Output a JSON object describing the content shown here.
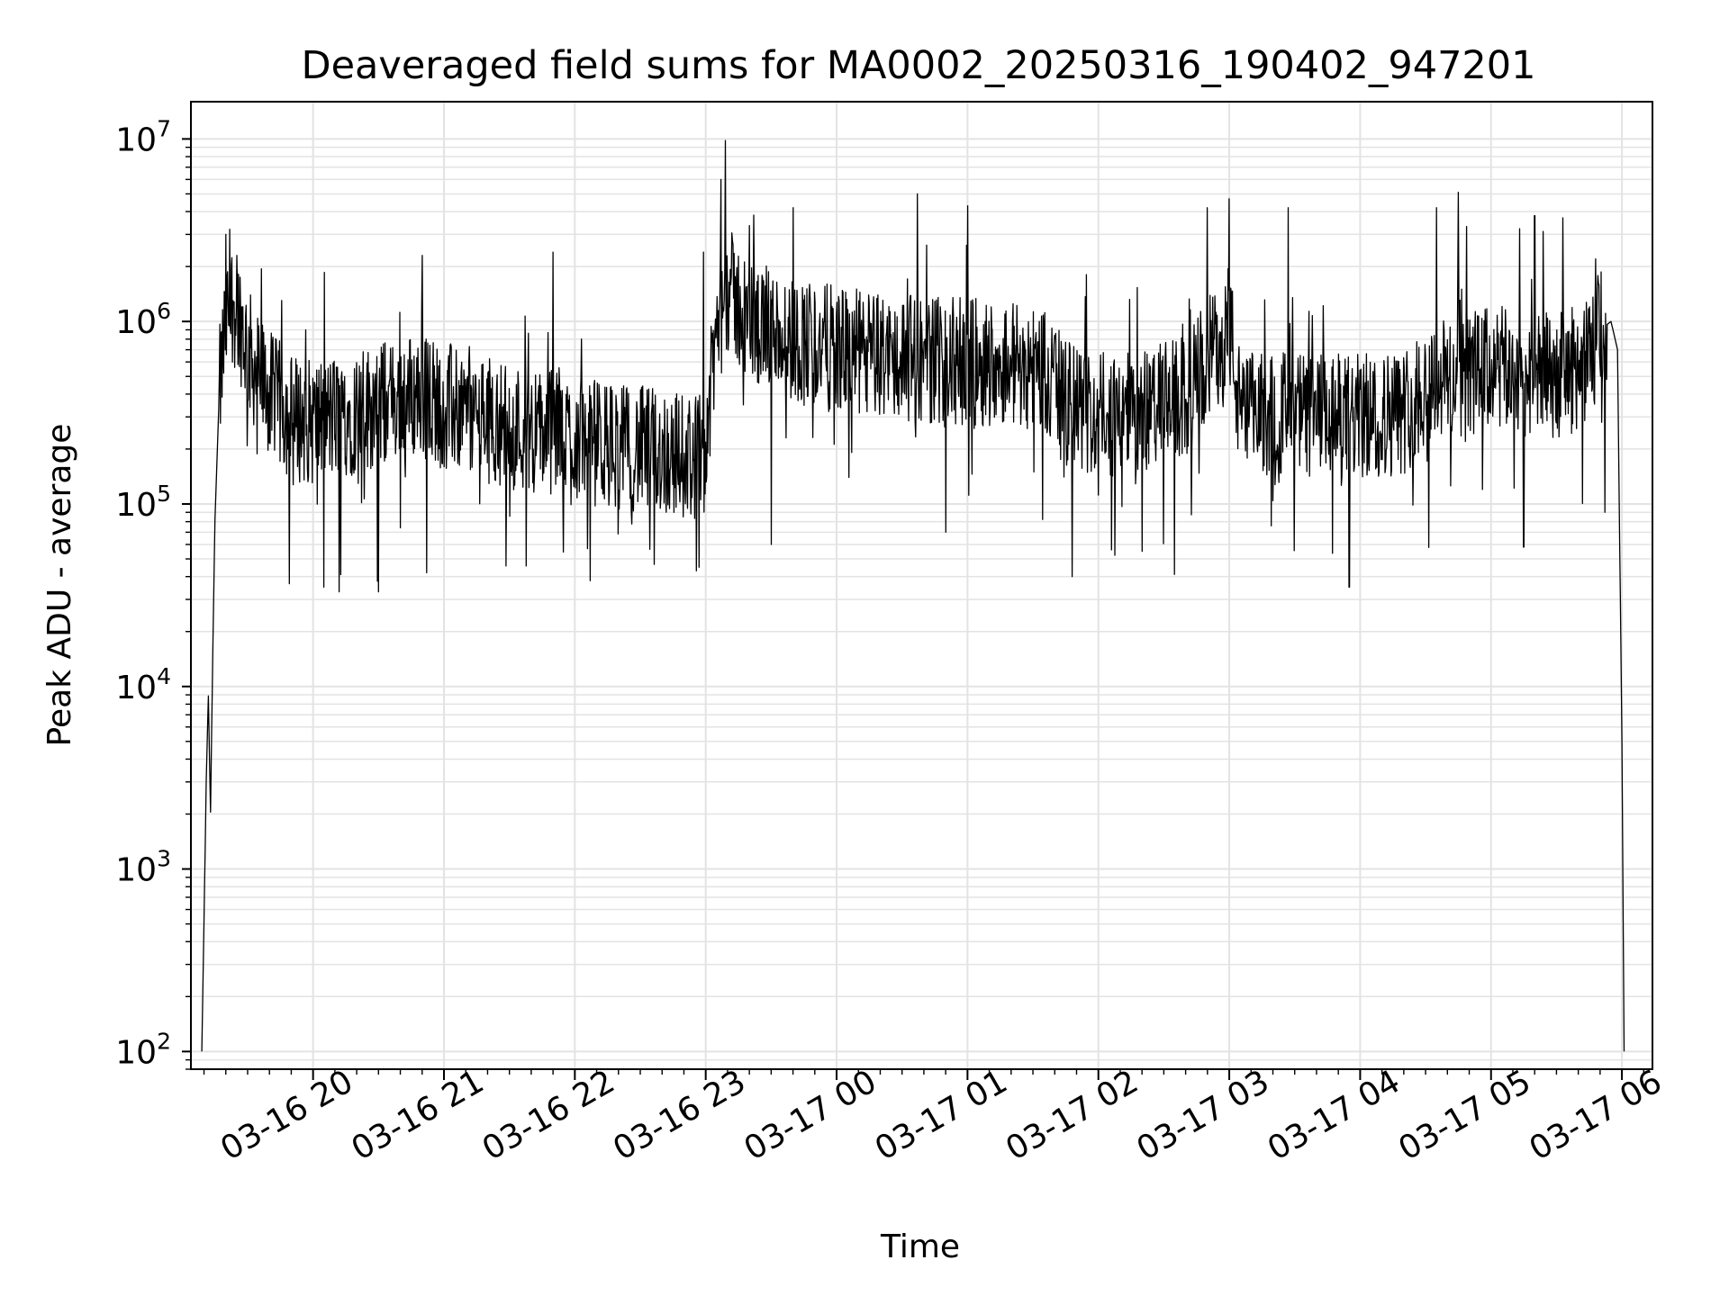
{
  "chart_data": {
    "type": "line",
    "title": "Deaveraged field sums for MA0002_20250316_190402_947201",
    "xlabel": "Time",
    "ylabel": "Peak ADU - average",
    "yscale": "log",
    "ylim": [
      80,
      16000000
    ],
    "xlim": [
      "2025-03-16 19:04",
      "2025-03-17 06:14"
    ],
    "grid": true,
    "x_ticks": [
      {
        "value": "2025-03-16 20:00",
        "label": "03-16 20"
      },
      {
        "value": "2025-03-16 21:00",
        "label": "03-16 21"
      },
      {
        "value": "2025-03-16 22:00",
        "label": "03-16 22"
      },
      {
        "value": "2025-03-16 23:00",
        "label": "03-16 23"
      },
      {
        "value": "2025-03-17 00:00",
        "label": "03-17 00"
      },
      {
        "value": "2025-03-17 01:00",
        "label": "03-17 01"
      },
      {
        "value": "2025-03-17 02:00",
        "label": "03-17 02"
      },
      {
        "value": "2025-03-17 03:00",
        "label": "03-17 03"
      },
      {
        "value": "2025-03-17 04:00",
        "label": "03-17 04"
      },
      {
        "value": "2025-03-17 05:00",
        "label": "03-17 05"
      },
      {
        "value": "2025-03-17 06:00",
        "label": "03-17 06"
      }
    ],
    "y_ticks": [
      {
        "value": 100,
        "base": "10",
        "exp": "2"
      },
      {
        "value": 1000,
        "base": "10",
        "exp": "3"
      },
      {
        "value": 10000,
        "base": "10",
        "exp": "4"
      },
      {
        "value": 100000,
        "base": "10",
        "exp": "5"
      },
      {
        "value": 1000000,
        "base": "10",
        "exp": "6"
      },
      {
        "value": 10000000,
        "base": "10",
        "exp": "7"
      }
    ],
    "series": [
      {
        "color": "#000000",
        "x": [
          "2025-03-16 19:09",
          "2025-03-16 19:10",
          "2025-03-16 19:11",
          "2025-03-16 19:12",
          "2025-03-16 19:13",
          "2025-03-16 19:14",
          "2025-03-16 19:15",
          "2025-03-16 19:17",
          "2025-03-16 19:20",
          "2025-03-16 19:23",
          "2025-03-16 19:26",
          "2025-03-16 19:30",
          "2025-03-16 19:35",
          "2025-03-16 19:40",
          "2025-03-16 19:45",
          "2025-03-16 19:50",
          "2025-03-16 20:00",
          "2025-03-16 20:10",
          "2025-03-16 20:20",
          "2025-03-16 20:30",
          "2025-03-16 20:40",
          "2025-03-16 20:50",
          "2025-03-16 21:00",
          "2025-03-16 21:15",
          "2025-03-16 21:30",
          "2025-03-16 21:45",
          "2025-03-16 22:00",
          "2025-03-16 22:15",
          "2025-03-16 22:30",
          "2025-03-16 22:45",
          "2025-03-16 22:55",
          "2025-03-16 23:00",
          "2025-03-16 23:05",
          "2025-03-16 23:10",
          "2025-03-16 23:20",
          "2025-03-16 23:40",
          "2025-03-17 00:00",
          "2025-03-17 00:20",
          "2025-03-17 00:40",
          "2025-03-17 01:00",
          "2025-03-17 01:20",
          "2025-03-17 01:35",
          "2025-03-17 01:45",
          "2025-03-17 02:00",
          "2025-03-17 02:20",
          "2025-03-17 02:40",
          "2025-03-17 02:50",
          "2025-03-17 03:00",
          "2025-03-17 03:05",
          "2025-03-17 03:20",
          "2025-03-17 03:40",
          "2025-03-17 04:00",
          "2025-03-17 04:20",
          "2025-03-17 04:30",
          "2025-03-17 04:45",
          "2025-03-17 05:00",
          "2025-03-17 05:15",
          "2025-03-17 05:30",
          "2025-03-17 05:45",
          "2025-03-17 05:50",
          "2025-03-17 05:55",
          "2025-03-17 05:58",
          "2025-03-17 06:00",
          "2025-03-17 06:01"
        ],
        "y": [
          100,
          500,
          3000,
          9000,
          2000,
          15000,
          80000,
          400000,
          1000000,
          1300000,
          1100000,
          700000,
          500000,
          400000,
          350000,
          300000,
          280000,
          300000,
          320000,
          350000,
          380000,
          400000,
          350000,
          300000,
          270000,
          250000,
          230000,
          210000,
          200000,
          190000,
          180000,
          200000,
          900000,
          1500000,
          1000000,
          800000,
          700000,
          650000,
          620000,
          600000,
          600000,
          550000,
          350000,
          300000,
          320000,
          380000,
          600000,
          1000000,
          300000,
          320000,
          300000,
          300000,
          320000,
          450000,
          500000,
          550000,
          520000,
          500000,
          600000,
          900000,
          1000000,
          700000,
          5000,
          100
        ],
        "spikes": [
          {
            "x": "2025-03-16 19:20",
            "y": 3000000
          },
          {
            "x": "2025-03-16 19:25",
            "y": 2300000
          },
          {
            "x": "2025-03-16 20:05",
            "y": 35000
          },
          {
            "x": "2025-03-16 20:12",
            "y": 33000
          },
          {
            "x": "2025-03-16 20:30",
            "y": 33000
          },
          {
            "x": "2025-03-16 20:50",
            "y": 2300000
          },
          {
            "x": "2025-03-16 20:52",
            "y": 42000
          },
          {
            "x": "2025-03-16 21:50",
            "y": 2400000
          },
          {
            "x": "2025-03-16 22:07",
            "y": 38000
          },
          {
            "x": "2025-03-16 22:57",
            "y": 45000
          },
          {
            "x": "2025-03-16 22:59",
            "y": 2400000
          },
          {
            "x": "2025-03-16 23:07",
            "y": 6000000
          },
          {
            "x": "2025-03-16 23:09",
            "y": 9800000
          },
          {
            "x": "2025-03-16 23:30",
            "y": 60000
          },
          {
            "x": "2025-03-16 23:40",
            "y": 4200000
          },
          {
            "x": "2025-03-17 00:37",
            "y": 5000000
          },
          {
            "x": "2025-03-17 00:50",
            "y": 70000
          },
          {
            "x": "2025-03-17 01:00",
            "y": 4300000
          },
          {
            "x": "2025-03-17 01:48",
            "y": 40000
          },
          {
            "x": "2025-03-17 02:20",
            "y": 55000
          },
          {
            "x": "2025-03-17 02:50",
            "y": 4200000
          },
          {
            "x": "2025-03-17 03:00",
            "y": 4700000
          },
          {
            "x": "2025-03-17 03:27",
            "y": 4200000
          },
          {
            "x": "2025-03-17 03:55",
            "y": 35000
          },
          {
            "x": "2025-03-17 04:35",
            "y": 4200000
          },
          {
            "x": "2025-03-17 04:45",
            "y": 5100000
          },
          {
            "x": "2025-03-17 05:15",
            "y": 58000
          },
          {
            "x": "2025-03-17 05:20",
            "y": 3800000
          },
          {
            "x": "2025-03-17 05:33",
            "y": 3700000
          },
          {
            "x": "2025-03-17 05:48",
            "y": 2200000
          }
        ]
      }
    ]
  }
}
